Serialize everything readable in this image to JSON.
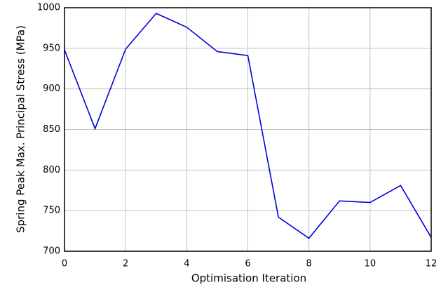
{
  "chart_data": {
    "type": "line",
    "xlabel": "Optimisation Iteration",
    "ylabel": "Spring Peak Max. Principal Stress (MPa)",
    "x": [
      0,
      1,
      2,
      3,
      4,
      5,
      6,
      7,
      8,
      9,
      10,
      11,
      12
    ],
    "series": [
      {
        "name": "Stress",
        "color": "#0000dd",
        "values": [
          948,
          851,
          949,
          993,
          976,
          946,
          941,
          742,
          716,
          762,
          760,
          781,
          717
        ]
      }
    ],
    "xlim": [
      0,
      12
    ],
    "xticks": [
      0,
      2,
      4,
      6,
      8,
      10,
      12
    ],
    "ylim": [
      700,
      1000
    ],
    "yticks": [
      700,
      750,
      800,
      850,
      900,
      950,
      1000
    ],
    "grid": true
  }
}
